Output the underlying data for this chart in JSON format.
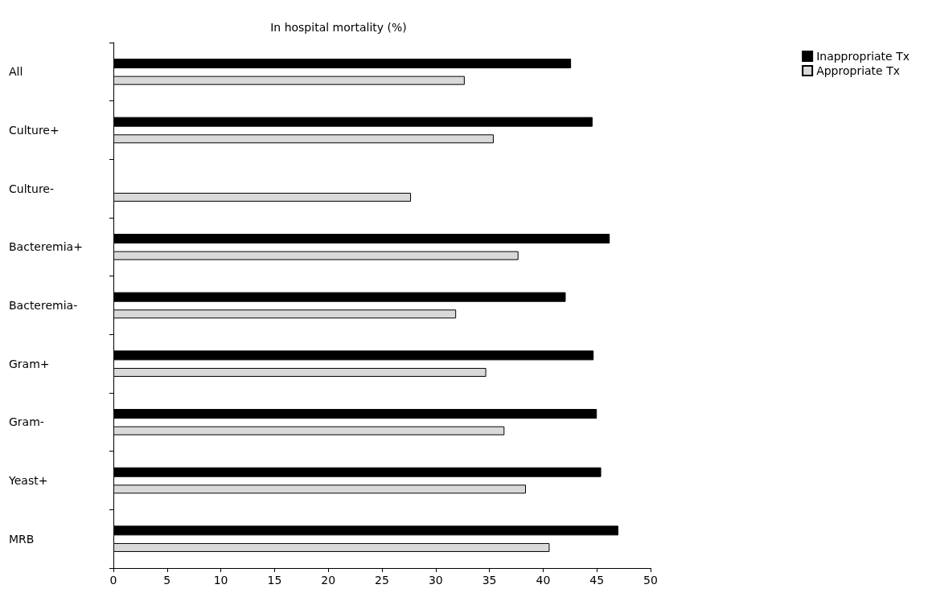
{
  "chart_data": {
    "type": "bar",
    "orientation": "horizontal",
    "title": "In hospital mortality (%)",
    "categories": [
      "All",
      "Culture+",
      "Culture-",
      "Bacteremia+",
      "Bacteremia-",
      "Gram+",
      "Gram-",
      "Yeast+",
      "MRB"
    ],
    "series": [
      {
        "name": "Inappropriate Tx",
        "color": "#000000",
        "values": [
          42.6,
          44.6,
          null,
          46.2,
          42.1,
          44.7,
          45.0,
          45.4,
          47.0
        ]
      },
      {
        "name": "Appropriate Tx",
        "color": "#d9d9d9",
        "values": [
          32.7,
          35.4,
          27.7,
          37.7,
          31.9,
          34.7,
          36.4,
          38.4,
          40.6
        ]
      }
    ],
    "xlim": [
      0,
      50
    ],
    "xticks": [
      0,
      5,
      10,
      15,
      20,
      25,
      30,
      35,
      40,
      45,
      50
    ],
    "grid": false,
    "legend": "top right"
  }
}
